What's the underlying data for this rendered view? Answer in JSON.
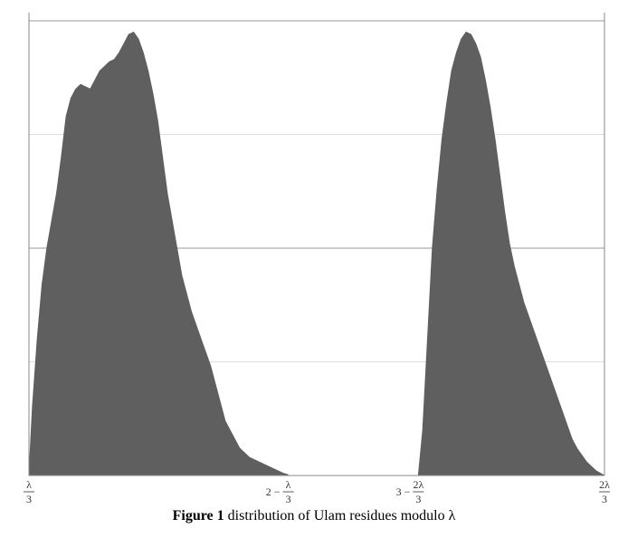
{
  "caption": {
    "label": "Figure 1",
    "text": " distribution of Ulam residues modulo λ"
  },
  "colors": {
    "fill": "#5f5f5f",
    "grid": "#dddddd",
    "axis": "#888888"
  },
  "chart_data": {
    "type": "area",
    "title": "",
    "xlabel": "",
    "ylabel": "",
    "xlim": [
      0.1014,
      0.6986
    ],
    "ylim": [
      0,
      1
    ],
    "grid": true,
    "x_ticks": [
      {
        "x": 0.1014,
        "prefix": "",
        "num": "λ",
        "den": "3"
      },
      {
        "x": 0.3705,
        "prefix": "2 −",
        "num": "λ",
        "den": "3"
      },
      {
        "x": 0.5055,
        "prefix": "3 −",
        "num": "2λ",
        "den": "3"
      },
      {
        "x": 0.6986,
        "prefix": "",
        "num": "2λ",
        "den": "3"
      }
    ],
    "series": [
      {
        "values_x": [
          0.1014,
          0.105,
          0.11,
          0.115,
          0.12,
          0.125,
          0.13,
          0.135,
          0.14,
          0.145,
          0.15,
          0.155,
          0.16,
          0.165,
          0.17,
          0.175,
          0.18,
          0.185,
          0.19,
          0.195,
          0.2,
          0.205,
          0.21,
          0.215,
          0.22,
          0.225,
          0.23,
          0.235,
          0.24,
          0.245,
          0.25,
          0.255,
          0.26,
          0.265,
          0.27,
          0.275,
          0.28,
          0.285,
          0.29,
          0.295,
          0.3,
          0.305,
          0.31,
          0.315,
          0.32,
          0.325,
          0.33,
          0.335,
          0.34,
          0.345,
          0.35,
          0.355,
          0.36,
          0.365,
          0.37,
          0.3705
        ],
        "values_y": [
          0.0,
          0.15,
          0.3,
          0.42,
          0.5,
          0.56,
          0.62,
          0.7,
          0.79,
          0.83,
          0.85,
          0.86,
          0.855,
          0.85,
          0.87,
          0.89,
          0.9,
          0.91,
          0.915,
          0.93,
          0.95,
          0.97,
          0.975,
          0.96,
          0.93,
          0.89,
          0.84,
          0.78,
          0.7,
          0.62,
          0.56,
          0.5,
          0.44,
          0.4,
          0.36,
          0.33,
          0.3,
          0.27,
          0.24,
          0.2,
          0.16,
          0.12,
          0.1,
          0.08,
          0.06,
          0.05,
          0.04,
          0.035,
          0.03,
          0.025,
          0.02,
          0.015,
          0.01,
          0.005,
          0.002,
          0.0
        ]
      },
      {
        "values_x": [
          0.5055,
          0.51,
          0.515,
          0.52,
          0.525,
          0.53,
          0.535,
          0.54,
          0.545,
          0.55,
          0.555,
          0.56,
          0.565,
          0.57,
          0.575,
          0.58,
          0.585,
          0.59,
          0.595,
          0.6,
          0.605,
          0.61,
          0.615,
          0.62,
          0.625,
          0.63,
          0.635,
          0.64,
          0.645,
          0.65,
          0.655,
          0.66,
          0.665,
          0.67,
          0.675,
          0.68,
          0.685,
          0.69,
          0.695,
          0.6986
        ],
        "values_y": [
          0.0,
          0.1,
          0.3,
          0.5,
          0.63,
          0.74,
          0.82,
          0.89,
          0.93,
          0.96,
          0.975,
          0.97,
          0.95,
          0.92,
          0.87,
          0.81,
          0.74,
          0.66,
          0.58,
          0.51,
          0.46,
          0.42,
          0.38,
          0.35,
          0.32,
          0.29,
          0.26,
          0.23,
          0.2,
          0.17,
          0.14,
          0.11,
          0.08,
          0.06,
          0.045,
          0.03,
          0.02,
          0.01,
          0.004,
          0.0
        ]
      }
    ]
  }
}
